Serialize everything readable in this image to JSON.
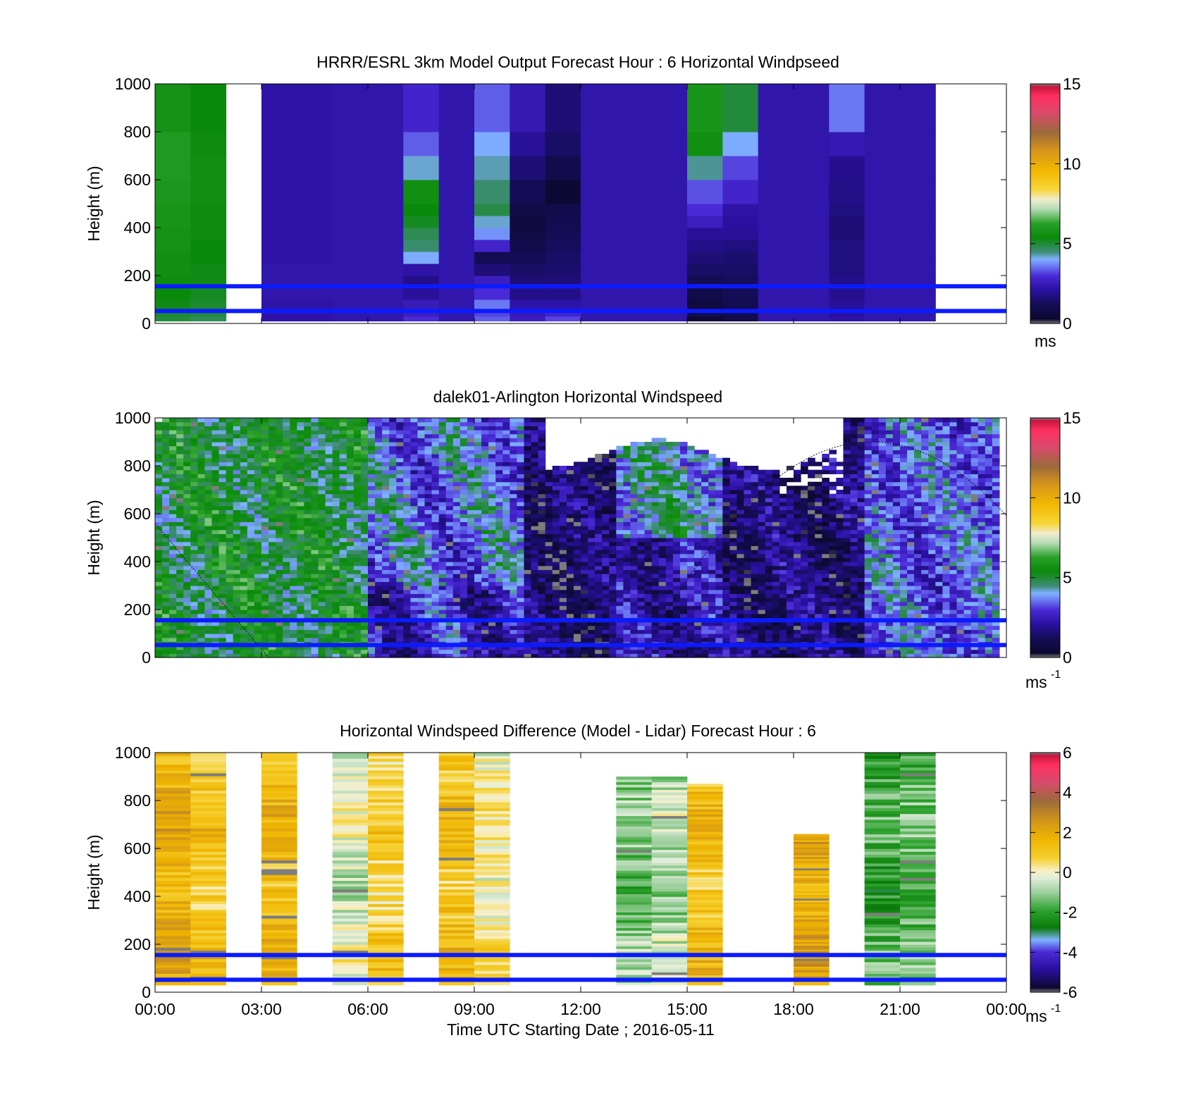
{
  "chart_data": [
    {
      "type": "heatmap",
      "title": "HRRR/ESRL 3km Model Output   Forecast Hour : 6 Horizontal Windpseed",
      "xlabel": "",
      "ylabel": "Height (m)",
      "x_range_hours": [
        0,
        24
      ],
      "ylim": [
        0,
        1000
      ],
      "yticks": [
        "0",
        "200",
        "400",
        "600",
        "800",
        "1000"
      ],
      "reference_lines_m": [
        155,
        52
      ],
      "reference_line_color": "#0b1bff",
      "colorbar": {
        "min": 0,
        "max": 15,
        "ticks": [
          "0",
          "5",
          "10",
          "15"
        ],
        "unit": "ms"
      },
      "columns_hours": [
        0,
        1,
        2,
        3,
        4,
        5,
        6,
        7,
        8,
        9,
        10,
        11,
        12,
        13,
        14,
        15,
        16,
        17,
        18,
        19,
        20,
        21,
        22,
        23
      ],
      "levels_m": [
        30,
        60,
        100,
        150,
        200,
        250,
        300,
        350,
        400,
        450,
        500,
        600,
        700,
        800,
        1000
      ],
      "values_ms": [
        [
          5.0,
          5.1,
          5.3,
          5.4,
          5.5,
          5.6,
          5.6,
          5.7,
          5.7,
          5.8,
          5.8,
          5.9,
          6.0,
          6.0,
          5.7
        ],
        [
          4.8,
          5.0,
          5.1,
          5.2,
          5.3,
          5.3,
          5.4,
          5.4,
          5.5,
          5.5,
          5.5,
          5.6,
          5.6,
          5.5,
          5.4
        ],
        null,
        [
          2.2,
          2.2,
          2.2,
          2.3,
          2.3,
          2.3,
          2.2,
          2.2,
          2.2,
          2.2,
          2.2,
          2.2,
          2.2,
          2.2,
          2.2
        ],
        [
          2.2,
          2.2,
          2.2,
          2.3,
          2.3,
          2.3,
          2.2,
          2.2,
          2.2,
          2.2,
          2.2,
          2.2,
          2.2,
          2.2,
          2.2
        ],
        [
          2.3,
          2.3,
          2.3,
          2.3,
          2.3,
          2.3,
          2.3,
          2.3,
          2.3,
          2.3,
          2.3,
          2.3,
          2.3,
          2.3,
          2.3
        ],
        [
          2.3,
          2.3,
          2.3,
          2.3,
          2.3,
          2.3,
          2.3,
          2.3,
          2.3,
          2.3,
          2.3,
          2.3,
          2.3,
          2.3,
          2.3
        ],
        [
          3.0,
          2.6,
          2.5,
          2.0,
          1.8,
          2.2,
          4.0,
          4.6,
          4.8,
          5.2,
          5.4,
          5.6,
          4.2,
          3.4,
          2.8
        ],
        [
          2.3,
          2.3,
          2.3,
          2.3,
          2.3,
          2.3,
          2.3,
          2.3,
          2.3,
          2.3,
          2.3,
          2.3,
          2.3,
          2.3,
          2.3
        ],
        [
          3.4,
          3.2,
          3.6,
          3.0,
          2.6,
          1.6,
          1.2,
          2.8,
          3.8,
          4.2,
          4.9,
          4.6,
          4.3,
          4.0,
          3.4
        ],
        [
          2.6,
          2.4,
          2.2,
          1.8,
          1.6,
          1.4,
          1.2,
          1.0,
          0.8,
          0.7,
          0.8,
          1.2,
          1.6,
          2.0,
          2.4
        ],
        [
          3.2,
          2.8,
          2.2,
          1.8,
          1.6,
          1.5,
          1.4,
          1.3,
          1.2,
          1.1,
          1.0,
          0.4,
          1.0,
          1.4,
          1.6
        ],
        [
          2.3,
          2.3,
          2.3,
          2.3,
          2.3,
          2.3,
          2.3,
          2.3,
          2.3,
          2.3,
          2.3,
          2.3,
          2.3,
          2.3,
          2.3
        ],
        [
          2.3,
          2.3,
          2.3,
          2.3,
          2.3,
          2.3,
          2.3,
          2.3,
          2.3,
          2.3,
          2.3,
          2.3,
          2.3,
          2.3,
          2.3
        ],
        [
          2.3,
          2.3,
          2.3,
          2.3,
          2.3,
          2.3,
          2.3,
          2.3,
          2.3,
          2.3,
          2.3,
          2.3,
          2.3,
          2.3,
          2.3
        ],
        [
          0.4,
          1.0,
          0.7,
          0.9,
          1.1,
          1.4,
          1.6,
          1.8,
          2.0,
          2.6,
          3.0,
          3.3,
          4.4,
          5.6,
          5.8
        ],
        [
          0.9,
          1.0,
          1.1,
          1.2,
          1.3,
          1.4,
          1.5,
          1.7,
          2.0,
          2.1,
          2.2,
          2.8,
          3.2,
          4.0,
          5.0
        ],
        [
          2.3,
          2.3,
          2.3,
          2.3,
          2.3,
          2.3,
          2.3,
          2.3,
          2.3,
          2.3,
          2.3,
          2.3,
          2.3,
          2.3,
          2.3
        ],
        [
          2.3,
          2.3,
          2.3,
          2.3,
          2.3,
          2.3,
          2.3,
          2.3,
          2.3,
          2.3,
          2.3,
          2.3,
          2.3,
          2.3,
          2.3
        ],
        [
          2.2,
          2.1,
          2.0,
          1.9,
          1.8,
          1.7,
          1.7,
          1.7,
          1.6,
          1.6,
          1.7,
          1.8,
          1.9,
          2.4,
          3.6
        ],
        [
          2.3,
          2.3,
          2.3,
          2.3,
          2.3,
          2.3,
          2.3,
          2.3,
          2.3,
          2.3,
          2.3,
          2.3,
          2.3,
          2.3,
          2.3
        ],
        [
          2.3,
          2.3,
          2.3,
          2.3,
          2.3,
          2.3,
          2.3,
          2.3,
          2.3,
          2.3,
          2.3,
          2.3,
          2.3,
          2.3,
          2.3
        ],
        null,
        null
      ]
    },
    {
      "type": "heatmap",
      "title": "dalek01-Arlington  Horizontal Windspeed",
      "xlabel": "",
      "ylabel": "Height (m)",
      "x_range_hours": [
        0,
        24
      ],
      "ylim": [
        0,
        1000
      ],
      "yticks": [
        "0",
        "200",
        "400",
        "600",
        "800",
        "1000"
      ],
      "reference_lines_m": [
        155,
        52
      ],
      "colorbar": {
        "min": 0,
        "max": 15,
        "ticks": [
          "0",
          "5",
          "10",
          "15"
        ],
        "unit": "ms",
        "unit_exponent": "-1"
      },
      "regime_approx_hours": [
        {
          "from": 0.0,
          "to": 6.0,
          "mean_ms": 5.2
        },
        {
          "from": 6.0,
          "to": 10.5,
          "mean_ms": 2.8
        },
        {
          "from": 10.5,
          "to": 13.0,
          "mean_ms": 1.4
        },
        {
          "from": 13.0,
          "to": 16.0,
          "mean_ms": 3.0
        },
        {
          "from": 16.0,
          "to": 20.0,
          "mean_ms": 1.6
        },
        {
          "from": 20.0,
          "to": 24.0,
          "mean_ms": 3.4
        }
      ],
      "missing_region": "above ~850 m between 11:00 and 19:30"
    },
    {
      "type": "heatmap",
      "title": "Horizontal Windspeed Difference (Model - Lidar) Forecast Hour : 6",
      "xlabel": "Time UTC  Starting Date ; 2016-05-11",
      "ylabel": "Height (m)",
      "xticks": [
        "00:00",
        "03:00",
        "06:00",
        "09:00",
        "12:00",
        "15:00",
        "18:00",
        "21:00",
        "00:00"
      ],
      "x_range_hours": [
        0,
        24
      ],
      "ylim": [
        0,
        1000
      ],
      "yticks": [
        "0",
        "200",
        "400",
        "600",
        "800",
        "1000"
      ],
      "reference_lines_m": [
        155,
        52
      ],
      "colorbar": {
        "min": -6,
        "max": 6,
        "ticks": [
          "-6",
          "-4",
          "-2",
          "0",
          "2",
          "4",
          "6"
        ],
        "unit": "ms",
        "unit_exponent": "-1"
      },
      "columns": [
        {
          "hour": 0,
          "top_m": 1000,
          "mean_diff_ms": 1.8
        },
        {
          "hour": 1,
          "top_m": 1000,
          "mean_diff_ms": 1.2
        },
        {
          "hour": 3,
          "top_m": 1000,
          "mean_diff_ms": 1.5
        },
        {
          "hour": 5,
          "top_m": 1000,
          "mean_diff_ms": -0.3
        },
        {
          "hour": 6,
          "top_m": 1000,
          "mean_diff_ms": 0.8
        },
        {
          "hour": 8,
          "top_m": 1000,
          "mean_diff_ms": 1.3
        },
        {
          "hour": 9,
          "top_m": 1000,
          "mean_diff_ms": 0.2
        },
        {
          "hour": 13,
          "top_m": 900,
          "mean_diff_ms": -1.2
        },
        {
          "hour": 14,
          "top_m": 900,
          "mean_diff_ms": -0.8
        },
        {
          "hour": 15,
          "top_m": 870,
          "mean_diff_ms": 1.3
        },
        {
          "hour": 18,
          "top_m": 660,
          "mean_diff_ms": 2.0
        },
        {
          "hour": 20,
          "top_m": 1000,
          "mean_diff_ms": -1.8
        },
        {
          "hour": 21,
          "top_m": 1000,
          "mean_diff_ms": -1.5
        }
      ]
    }
  ],
  "figure": {
    "line_color": "#0b1bff"
  }
}
